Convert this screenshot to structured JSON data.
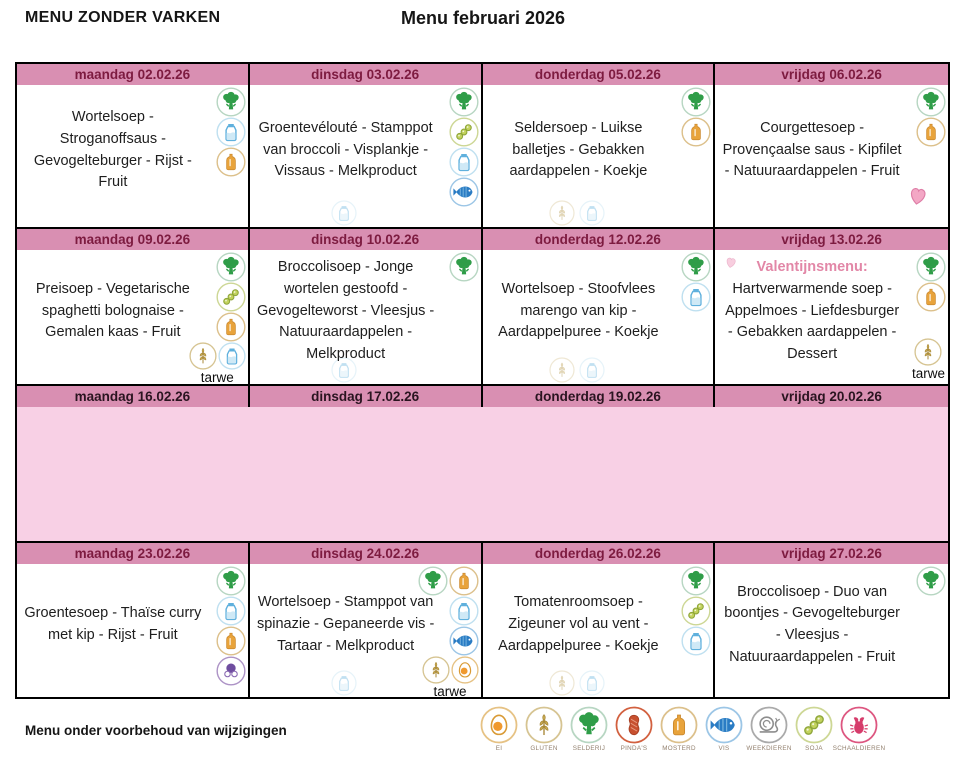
{
  "page": {
    "title_left": "MENU ZONDER VARKEN",
    "title_center": "Menu februari 2026",
    "footer_note": "Menu onder voorbehoud van wijzigingen"
  },
  "colors": {
    "header_pink": "#d98fb2",
    "empty_week_pink": "#f8d0e5",
    "header_text_maroon": "#7d1b40",
    "valentine_pink": "#e287a7",
    "border_black": "#000000"
  },
  "legend": {
    "items": [
      {
        "icon": "ei",
        "label": "EI"
      },
      {
        "icon": "gluten",
        "label": "GLUTEN"
      },
      {
        "icon": "selderij",
        "label": "SELDERIJ"
      },
      {
        "icon": "pindas",
        "label": "PINDA'S"
      },
      {
        "icon": "mosterd",
        "label": "MOSTERD"
      },
      {
        "icon": "vis",
        "label": "VIS"
      },
      {
        "icon": "weekdieren",
        "label": "WEEKDIEREN"
      },
      {
        "icon": "soja",
        "label": "SOJA"
      },
      {
        "icon": "schaaldieren",
        "label": "SCHAALDIEREN"
      }
    ]
  },
  "weeks": [
    {
      "empty": false,
      "days": [
        {
          "title": "maandag 02.02.26",
          "menu": "Wortelsoep - Stroganoffsaus - Gevogelteburger - Rijst - Fruit",
          "icon_rows": [
            [
              "selderij"
            ],
            [
              "melk"
            ],
            [
              "mosterd"
            ]
          ]
        },
        {
          "title": "dinsdag 03.02.26",
          "menu": "Groentevélouté - Stamppot van broccoli - Visplankje - Vissaus - Melkproduct",
          "icon_rows": [
            [
              "selderij"
            ],
            [
              "soja"
            ],
            [
              "melk"
            ],
            [
              "vis"
            ]
          ],
          "bottom_icons": [
            "melk"
          ]
        },
        {
          "title": "donderdag 05.02.26",
          "menu": "Seldersoep - Luikse balletjes - Gebakken aardappelen - Koekje",
          "icon_rows": [
            [
              "selderij"
            ],
            [
              "mosterd"
            ]
          ],
          "bottom_icons": [
            "gluten",
            "melk"
          ]
        },
        {
          "title": "vrijdag 06.02.26",
          "menu": "Courgettesoep - Provençaalse saus - Kipfilet - Natuuraardappelen - Fruit",
          "icon_rows": [
            [
              "selderij"
            ],
            [
              "mosterd"
            ]
          ],
          "heart_bottom": true
        }
      ]
    },
    {
      "empty": false,
      "days": [
        {
          "title": "maandag 09.02.26",
          "menu": "Preisoep - Vegetarische spaghetti bolognaise - Gemalen kaas - Fruit",
          "icon_rows": [
            [
              "selderij"
            ],
            [
              "soja"
            ],
            [
              "mosterd"
            ]
          ],
          "tarwe_icons": [
            "gluten",
            "melk"
          ],
          "tarwe_label": "tarwe"
        },
        {
          "title": "dinsdag 10.02.26",
          "menu": "Broccolisoep - Jonge wortelen gestoofd - Gevogelteworst - Vleesjus - Natuuraardappelen - Melkproduct",
          "icon_rows": [
            [
              "selderij"
            ]
          ],
          "bottom_icons": [
            "melk"
          ]
        },
        {
          "title": "donderdag 12.02.26",
          "menu": "Wortelsoep - Stoofvlees marengo van kip - Aardappelpuree - Koekje",
          "icon_rows": [
            [
              "selderij"
            ],
            [
              "melk"
            ]
          ],
          "bottom_icons": [
            "gluten",
            "melk"
          ]
        },
        {
          "title": "vrijdag 13.02.26",
          "valentine_label": "Valentijnsmenu:",
          "menu": "Hartverwarmende soep - Appelmoes - Liefdesburger - Gebakken aardappelen - Dessert",
          "icon_rows": [
            [
              "selderij"
            ],
            [
              "mosterd"
            ]
          ],
          "tarwe_icons": [
            "gluten"
          ],
          "tarwe_label": "tarwe",
          "heart_top": true
        }
      ]
    },
    {
      "empty": true,
      "days": [
        {
          "title": "maandag 16.02.26",
          "menu": ""
        },
        {
          "title": "dinsdag 17.02.26",
          "menu": ""
        },
        {
          "title": "donderdag 19.02.26",
          "menu": ""
        },
        {
          "title": "vrijdag 20.02.26",
          "menu": ""
        }
      ]
    },
    {
      "empty": false,
      "days": [
        {
          "title": "maandag 23.02.26",
          "menu": "Groentesoep - Thaïse curry met kip - Rijst - Fruit",
          "icon_rows": [
            [
              "selderij"
            ],
            [
              "melk"
            ],
            [
              "mosterd"
            ],
            [
              "lupine"
            ]
          ]
        },
        {
          "title": "dinsdag 24.02.26",
          "menu": "Wortelsoep - Stamppot van spinazie - Gepaneerde vis - Tartaar - Melkproduct",
          "icon_rows": [
            [
              "selderij",
              "mosterd"
            ],
            [
              "melk"
            ],
            [
              "vis"
            ]
          ],
          "tarwe_icons": [
            "gluten",
            "ei"
          ],
          "tarwe_label": "tarwe",
          "bottom_icons": [
            "melk"
          ]
        },
        {
          "title": "donderdag 26.02.26",
          "menu": "Tomatenroomsoep - Zigeuner vol au vent - Aardappelpuree - Koekje",
          "icon_rows": [
            [
              "selderij"
            ],
            [
              "soja"
            ],
            [
              "melk"
            ]
          ],
          "bottom_icons": [
            "gluten",
            "melk"
          ]
        },
        {
          "title": "vrijdag 27.02.26",
          "menu": "Broccolisoep - Duo van boontjes - Gevogelteburger - Vleesjus - Natuuraardappelen - Fruit",
          "icon_rows": [
            [
              "selderij"
            ]
          ]
        }
      ]
    }
  ]
}
